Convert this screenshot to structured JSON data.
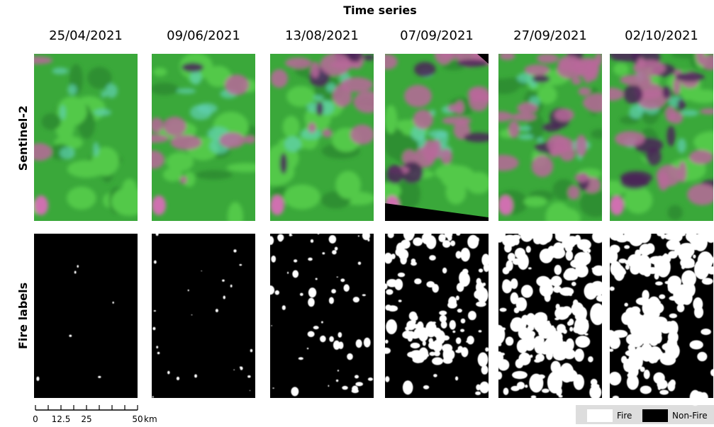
{
  "header": {
    "title": "Time series"
  },
  "columns": [
    "25/04/2021",
    "09/06/2021",
    "13/08/2021",
    "07/09/2021",
    "27/09/2021",
    "02/10/2021"
  ],
  "rows": [
    "Sentinel-2",
    "Fire labels"
  ],
  "scale_bar": {
    "ticks": [
      "0",
      "12.5",
      "25",
      "50"
    ],
    "unit": "km"
  },
  "legend": [
    "Fire",
    "Non-Fire"
  ]
}
